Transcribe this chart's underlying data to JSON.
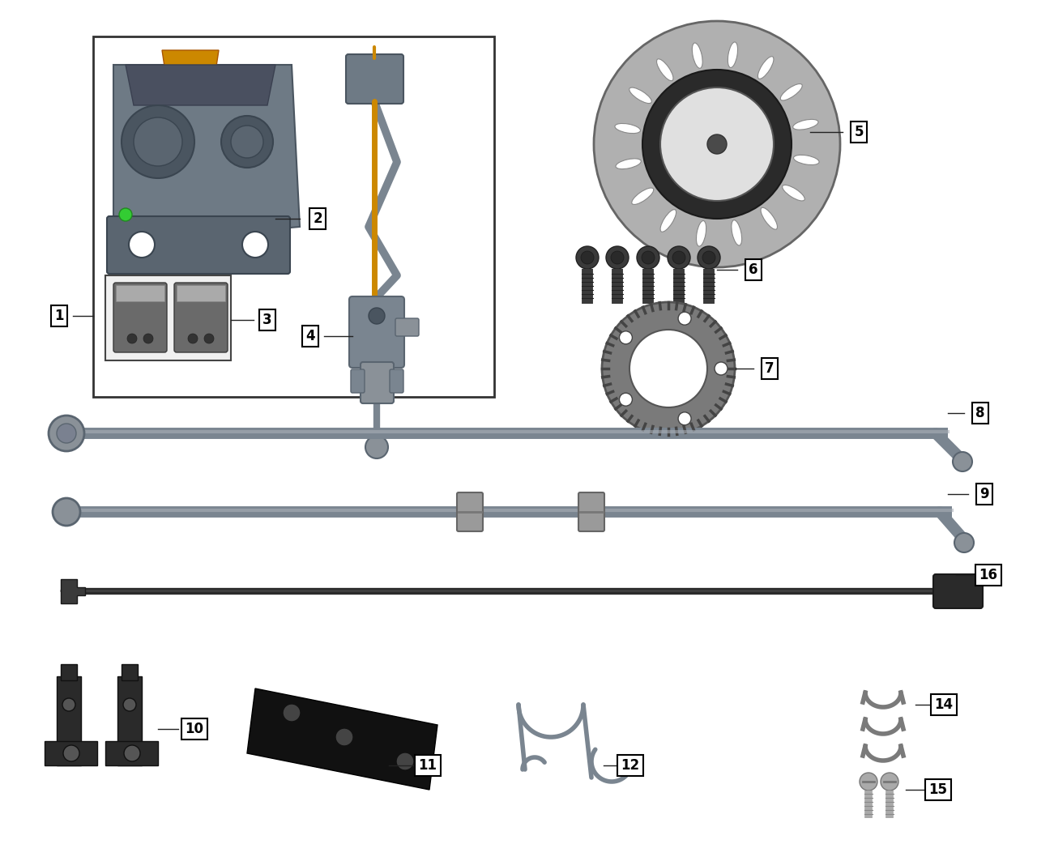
{
  "bg_color": "#ffffff",
  "figsize": [
    12.8,
    10.63
  ],
  "dpi": 100,
  "gray1": "#7a8590",
  "gray2": "#5a6570",
  "gray3": "#9aA0a8",
  "dark1": "#3a3a3a",
  "dark2": "#2a2a2a",
  "orange1": "#cc8800",
  "black1": "#1a1a1a",
  "lgray": "#b0b8c0"
}
